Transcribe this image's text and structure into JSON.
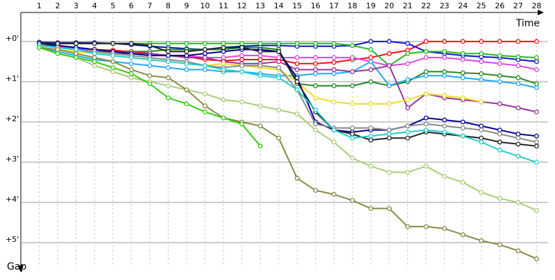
{
  "chart_data": {
    "type": "line",
    "x_label": "Time",
    "y_label": "Gap",
    "x": [
      1,
      2,
      3,
      4,
      5,
      6,
      7,
      8,
      9,
      10,
      11,
      12,
      13,
      14,
      15,
      16,
      17,
      18,
      19,
      20,
      21,
      22,
      23,
      24,
      25,
      26,
      27,
      28
    ],
    "xticks": [
      1,
      2,
      3,
      4,
      5,
      6,
      7,
      8,
      9,
      10,
      11,
      12,
      13,
      14,
      15,
      16,
      17,
      18,
      19,
      20,
      21,
      22,
      23,
      24,
      25,
      26,
      27,
      28
    ],
    "xlim": [
      0,
      29
    ],
    "ylim": [
      -0.6,
      5.6
    ],
    "yticks": [
      {
        "value": 0,
        "label": "+0'"
      },
      {
        "value": 1,
        "label": "+1'"
      },
      {
        "value": 2,
        "label": "+2'"
      },
      {
        "value": 3,
        "label": "+3'"
      },
      {
        "value": 4,
        "label": "+4'"
      },
      {
        "value": 5,
        "label": "+5'"
      }
    ],
    "grid": true,
    "series": [
      {
        "color": "#ee1111",
        "values": [
          0.1,
          0.12,
          0.15,
          0.2,
          0.22,
          0.25,
          0.3,
          0.35,
          0.38,
          0.45,
          0.48,
          0.45,
          0.45,
          0.45,
          0.55,
          0.55,
          0.52,
          0.45,
          0.4,
          0.3,
          0.22,
          0,
          0,
          0,
          0,
          0,
          0,
          0
        ]
      },
      {
        "color": "#1111cc",
        "values": [
          0.02,
          0.03,
          0.03,
          0.03,
          0.05,
          0.08,
          0.12,
          0.15,
          0.18,
          0.2,
          0.15,
          0.12,
          0.1,
          0.1,
          0.12,
          0.12,
          0.12,
          0.1,
          0,
          0,
          0.05,
          0.25,
          0.3,
          0.35,
          0.38,
          0.4,
          0.45,
          0.5
        ]
      },
      {
        "color": "#22bb22",
        "values": [
          0.05,
          0.05,
          0.05,
          0.05,
          0.05,
          0.05,
          0.05,
          0.05,
          0.05,
          0.05,
          0.05,
          0.05,
          0.05,
          0.05,
          0.05,
          0.05,
          0.05,
          0.1,
          0.2,
          0.6,
          0.3,
          0.25,
          0.25,
          0.3,
          0.3,
          0.35,
          0.38,
          0.4
        ]
      },
      {
        "color": "#dd44dd",
        "values": [
          0.1,
          0.15,
          0.18,
          0.2,
          0.25,
          0.3,
          0.35,
          0.35,
          0.35,
          0.4,
          0.4,
          0.35,
          0.35,
          0.4,
          0.4,
          0.4,
          0.4,
          0.4,
          0.5,
          0.6,
          0.55,
          0.4,
          0.4,
          0.45,
          0.5,
          0.55,
          0.6,
          0.7
        ]
      },
      {
        "color": "#228822",
        "values": [
          0.1,
          0.15,
          0.2,
          0.25,
          0.25,
          0.25,
          0.25,
          0.2,
          0.2,
          0.2,
          0.2,
          0.15,
          0.15,
          0.2,
          1.05,
          1.1,
          1.1,
          1.1,
          1.0,
          1.1,
          1.0,
          0.75,
          0.75,
          0.78,
          0.8,
          0.85,
          0.9,
          1.05
        ]
      },
      {
        "color": "#22aaee",
        "values": [
          0.15,
          0.25,
          0.35,
          0.45,
          0.5,
          0.55,
          0.6,
          0.65,
          0.7,
          0.7,
          0.75,
          0.75,
          0.8,
          0.85,
          0.85,
          0.8,
          0.8,
          0.75,
          0.5,
          1.1,
          0.95,
          0.85,
          0.85,
          0.9,
          0.95,
          1.0,
          1.05,
          1.15
        ]
      },
      {
        "color": "#993399",
        "values": [
          0.1,
          0.15,
          0.2,
          0.25,
          0.3,
          0.3,
          0.3,
          0.35,
          0.4,
          0.4,
          0.5,
          0.55,
          0.55,
          0.5,
          0.7,
          0.7,
          0.7,
          0.75,
          0.7,
          0.6,
          1.65,
          1.3,
          1.4,
          1.45,
          1.5,
          1.55,
          1.65,
          1.75
        ]
      },
      {
        "color": "#eedd22",
        "values": [
          0.15,
          0.2,
          0.25,
          0.3,
          0.35,
          0.4,
          0.45,
          0.5,
          0.55,
          0.6,
          0.55,
          0.6,
          0.65,
          0.7,
          1.0,
          1.4,
          1.5,
          1.55,
          1.55,
          1.55,
          1.45,
          1.3,
          1.35,
          1.4,
          1.5,
          null,
          null,
          null
        ]
      },
      {
        "color": "#000099",
        "values": [
          0.05,
          0.1,
          0.15,
          0.2,
          0.25,
          0.3,
          0.35,
          0.35,
          0.35,
          0.3,
          0.25,
          0.2,
          0.2,
          0.25,
          0.9,
          2.0,
          2.2,
          2.25,
          2.2,
          2.2,
          2.1,
          1.9,
          1.95,
          2.0,
          2.1,
          2.2,
          2.3,
          2.35
        ]
      },
      {
        "color": "#888888",
        "values": [
          0.1,
          0.15,
          0.2,
          0.25,
          0.3,
          0.35,
          0.4,
          0.45,
          0.5,
          0.6,
          0.65,
          0.6,
          0.6,
          0.65,
          1.2,
          2.05,
          2.15,
          2.15,
          2.15,
          2.2,
          2.1,
          2.05,
          2.1,
          2.15,
          2.2,
          2.3,
          2.4,
          2.5
        ]
      },
      {
        "color": "#222222",
        "values": [
          0.05,
          0.05,
          0.05,
          0.05,
          0.05,
          0.05,
          0.1,
          0.25,
          0.25,
          0.2,
          0.15,
          0.15,
          0.25,
          0.25,
          1.0,
          1.75,
          2.2,
          2.3,
          2.45,
          2.4,
          2.4,
          2.25,
          2.3,
          2.35,
          2.4,
          2.5,
          2.55,
          2.6
        ]
      },
      {
        "color": "#22cccc",
        "values": [
          0.1,
          0.15,
          0.2,
          0.3,
          0.35,
          0.4,
          0.45,
          0.5,
          0.55,
          0.6,
          0.7,
          0.75,
          0.85,
          0.9,
          1.2,
          1.7,
          2.2,
          2.4,
          2.35,
          2.3,
          2.25,
          2.2,
          2.25,
          2.35,
          2.5,
          2.7,
          2.85,
          3.0
        ]
      },
      {
        "color": "#aacc77",
        "values": [
          0.15,
          0.3,
          0.4,
          0.6,
          0.75,
          0.9,
          1.0,
          1.1,
          1.2,
          1.3,
          1.45,
          1.5,
          1.6,
          1.7,
          1.8,
          2.2,
          2.5,
          2.9,
          3.1,
          3.25,
          3.25,
          3.1,
          3.35,
          3.5,
          3.75,
          3.9,
          4.0,
          4.2
        ]
      },
      {
        "color": "#888844",
        "values": [
          0.15,
          0.2,
          0.3,
          0.4,
          0.5,
          0.7,
          0.85,
          0.9,
          1.2,
          1.6,
          1.9,
          2.0,
          2.1,
          2.4,
          3.4,
          3.7,
          3.8,
          3.95,
          4.15,
          4.15,
          4.6,
          4.6,
          4.65,
          4.8,
          4.95,
          5.05,
          5.2,
          5.4
        ]
      },
      {
        "color": "#33cc11",
        "values": [
          0.15,
          0.3,
          0.4,
          0.5,
          0.65,
          0.8,
          1.05,
          1.4,
          1.55,
          1.75,
          1.9,
          2.05,
          2.6,
          null,
          null,
          null,
          null,
          null,
          null,
          null,
          null,
          null,
          null,
          null,
          null,
          null,
          null,
          null
        ]
      }
    ]
  }
}
